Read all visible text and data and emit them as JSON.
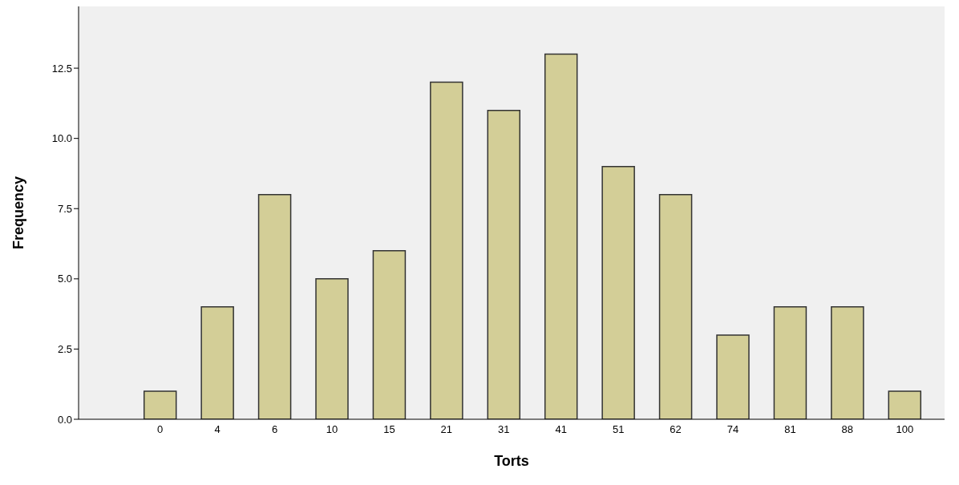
{
  "chart_data": {
    "type": "bar",
    "xlabel": "Torts",
    "ylabel": "Frequency",
    "categories": [
      "0",
      "4",
      "6",
      "10",
      "15",
      "21",
      "31",
      "41",
      "51",
      "62",
      "74",
      "81",
      "88",
      "100"
    ],
    "values": [
      1,
      4,
      8,
      5,
      6,
      12,
      11,
      13,
      9,
      8,
      3,
      4,
      4,
      1
    ],
    "color": "#d3ce97",
    "ylim": [
      0,
      14.7
    ],
    "yticks": [
      {
        "value": 0,
        "label": "0.0"
      },
      {
        "value": 2.5,
        "label": "2.5"
      },
      {
        "value": 5,
        "label": "5.0"
      },
      {
        "value": 7.5,
        "label": "7.5"
      },
      {
        "value": 10,
        "label": "10.0"
      },
      {
        "value": 12.5,
        "label": "12.5"
      }
    ],
    "grid": false
  }
}
